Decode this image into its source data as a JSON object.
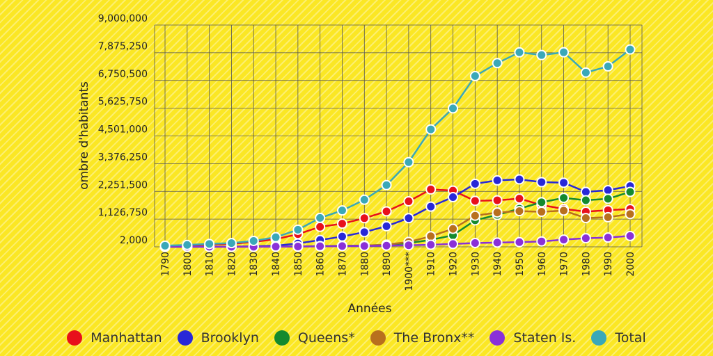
{
  "chart_data": {
    "type": "line",
    "xlabel": "Années",
    "ylabel": "ombre d'habitants",
    "ylim": [
      2000,
      9000000
    ],
    "yticks": [
      "2,000",
      "1,126,750",
      "2,251,500",
      "3,376,250",
      "4,501,000",
      "5,625,750",
      "6,750,500",
      "7,875,250",
      "9,000,000"
    ],
    "categories": [
      "1790",
      "1800",
      "1810",
      "1820",
      "1830",
      "1840",
      "1850",
      "1860",
      "1870",
      "1880",
      "1890",
      "1900***",
      "1910",
      "1920",
      "1930",
      "1940",
      "1950",
      "1960",
      "1970",
      "1980",
      "1990",
      "2000"
    ],
    "grid": true,
    "legend_position": "bottom",
    "series": [
      {
        "name": "Manhattan",
        "color": "#e8101b",
        "values": [
          33000,
          60000,
          96000,
          124000,
          203000,
          313000,
          516000,
          814000,
          942000,
          1164000,
          1441000,
          1850000,
          2331000,
          2284000,
          1867000,
          1890000,
          1960000,
          1698000,
          1539000,
          1428000,
          1488000,
          1537000
        ]
      },
      {
        "name": "Brooklyn",
        "color": "#2828d8",
        "values": [
          5000,
          6000,
          8000,
          11000,
          21000,
          48000,
          139000,
          279000,
          420000,
          599000,
          839000,
          1167000,
          1634000,
          2018000,
          2560000,
          2698000,
          2738000,
          2627000,
          2602000,
          2231000,
          2301000,
          2465000
        ]
      },
      {
        "name": "Queens*",
        "color": "#148a2e",
        "values": [
          6000,
          7000,
          8000,
          9000,
          9000,
          14000,
          19000,
          33000,
          45000,
          57000,
          87000,
          153000,
          284000,
          469000,
          1079000,
          1298000,
          1551000,
          1810000,
          1987000,
          1891000,
          1952000,
          2229000
        ]
      },
      {
        "name": "The Bronx**",
        "color": "#b8701e",
        "values": [
          1800,
          2000,
          3000,
          3000,
          4000,
          8000,
          9000,
          24000,
          37000,
          52000,
          89000,
          201000,
          431000,
          732000,
          1265000,
          1395000,
          1451000,
          1425000,
          1472000,
          1169000,
          1204000,
          1333000
        ]
      },
      {
        "name": "Staten Is.",
        "color": "#8a30d8",
        "values": [
          4000,
          4500,
          5300,
          6100,
          7100,
          10900,
          15100,
          25500,
          33000,
          39000,
          52000,
          67000,
          86000,
          117000,
          158000,
          174000,
          192000,
          222000,
          295000,
          352000,
          379000,
          444000
        ]
      },
      {
        "name": "Total",
        "color": "#3aa8b8",
        "values": [
          49000,
          79000,
          120000,
          153000,
          243000,
          392000,
          697000,
          1175000,
          1478000,
          1912000,
          2507000,
          3437000,
          4767000,
          5620000,
          6930000,
          7455000,
          7892000,
          7782000,
          7895000,
          7072000,
          7323000,
          8008000
        ]
      }
    ]
  }
}
